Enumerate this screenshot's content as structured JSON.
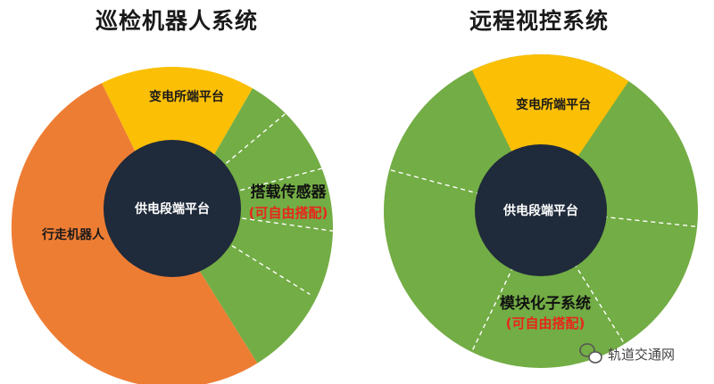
{
  "colors": {
    "orange": "#ee7d34",
    "yellow": "#fbbf05",
    "green": "#73ad45",
    "hub": "#1f2a3a",
    "highlight": "#e8261c"
  },
  "left": {
    "title": "巡检机器人系统",
    "hub": "供电段端平台",
    "substation": "变电所端平台",
    "walker": "行走机器人",
    "sensors": "搭载传感器",
    "sensors_note": "(可自由搭配)"
  },
  "right": {
    "title": "远程视控系统",
    "hub": "供电段端平台",
    "substation": "变电所端平台",
    "modules": "模块化子系统",
    "modules_note": "(可自由搭配)"
  },
  "watermark": {
    "icon": "wechat-icon",
    "text": "轨道交通网"
  }
}
